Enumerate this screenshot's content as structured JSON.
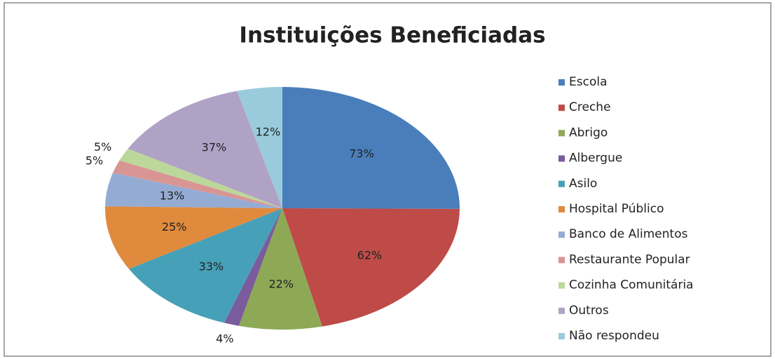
{
  "chart_data": {
    "type": "pie",
    "title": "Instituições Beneficiadas",
    "categories": [
      "Escola",
      "Creche",
      "Abrigo",
      "Albergue",
      "Asilo",
      "Hospital Público",
      "Banco de Alimentos",
      "Restaurante Popular",
      "Cozinha Comunitária",
      "Outros",
      "Não respondeu"
    ],
    "values": [
      73,
      62,
      22,
      4,
      33,
      25,
      13,
      5,
      5,
      37,
      12
    ],
    "value_labels": [
      "73%",
      "62%",
      "22%",
      "4%",
      "33%",
      "25%",
      "13%",
      "5%",
      "5%",
      "37%",
      "12%"
    ],
    "colors": [
      "#4a7ebb",
      "#be4b48",
      "#8ea956",
      "#7a5b9c",
      "#46a0b8",
      "#e08a3e",
      "#94acd3",
      "#d99594",
      "#bcd79a",
      "#b0a2c5",
      "#99cbdc"
    ],
    "legend": "right"
  }
}
